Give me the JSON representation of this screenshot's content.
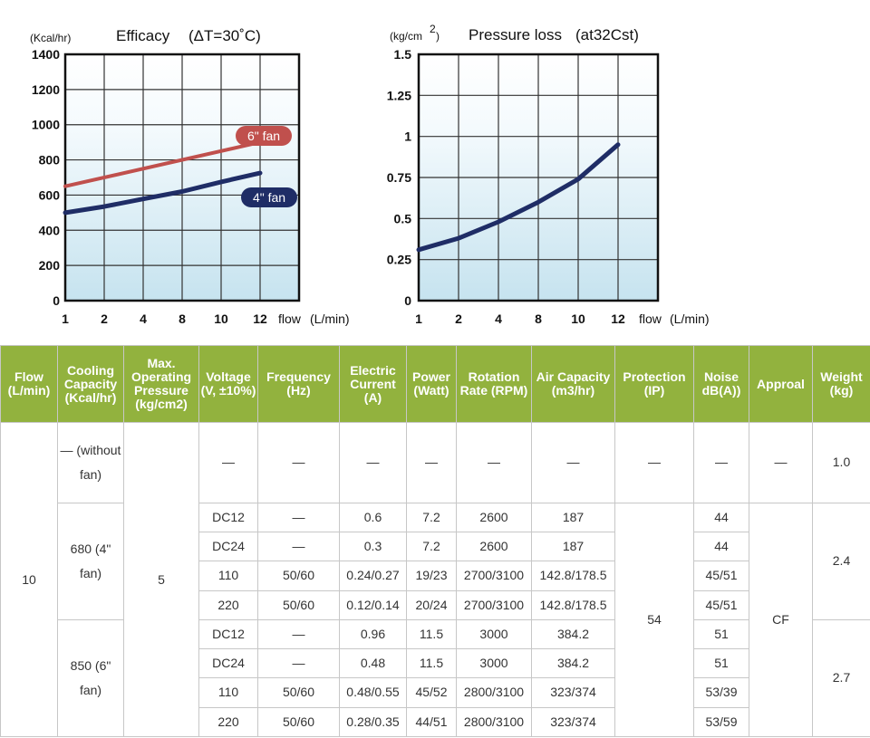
{
  "chart_data": [
    {
      "type": "line",
      "title": "Efficacy",
      "title_note": "(ΔT=30˚C)",
      "ylabel": "(Kcal/hr)",
      "xlabel": "flow",
      "xunit": "(L/min)",
      "x_ticks": [
        "1",
        "2",
        "4",
        "8",
        "10",
        "12"
      ],
      "y_ticks": [
        "0",
        "200",
        "400",
        "600",
        "800",
        "1000",
        "1200",
        "1400"
      ],
      "ylim": [
        0,
        1400
      ],
      "grid": true,
      "series": [
        {
          "name": "6\" fan",
          "color": "#c0504d",
          "x": [
            1,
            12
          ],
          "y": [
            650,
            900
          ]
        },
        {
          "name": "4\" fan",
          "color": "#1f2d66",
          "x": [
            1,
            2,
            4,
            8,
            10,
            12
          ],
          "y": [
            500,
            535,
            578,
            620,
            675,
            725
          ]
        }
      ]
    },
    {
      "type": "line",
      "title": "Pressure loss",
      "title_note": "(at32Cst)",
      "ylabel": "(kg/cm",
      "ylabel_sup": "2",
      "ylabel_close": ")",
      "xlabel": "flow",
      "xunit": "(L/min)",
      "x_ticks": [
        "1",
        "2",
        "4",
        "8",
        "10",
        "12"
      ],
      "y_ticks": [
        "0",
        "0.25",
        "0.5",
        "0.75",
        "1",
        "1.25",
        "1.5"
      ],
      "ylim": [
        0,
        1.5
      ],
      "grid": true,
      "series": [
        {
          "color": "#1f2d66",
          "x": [
            1,
            2,
            4,
            8,
            10,
            12
          ],
          "y": [
            0.31,
            0.38,
            0.48,
            0.6,
            0.74,
            0.95
          ]
        }
      ]
    }
  ],
  "table": {
    "headers": [
      "Flow (L/min)",
      "Cooling Capacity (Kcal/hr)",
      "Max. Operating Pressure (kg/cm2)",
      "Voltage (V, ±10%)",
      "Frequency (Hz)",
      "Electric Current (A)",
      "Power (Watt)",
      "Rotation Rate (RPM)",
      "Air Capacity (m3/hr)",
      "Protection (IP)",
      "Noise dB(A))",
      "Approal",
      "Weight (kg)"
    ],
    "flow": "10",
    "pressure": "5",
    "protection": "54",
    "approval": "CF",
    "first_row": {
      "capacity": "— (without fan)",
      "voltage": "—",
      "frequency": "—",
      "current": "—",
      "power": "—",
      "rpm": "—",
      "air": "—",
      "protection": "—",
      "noise": "—",
      "approval": "—",
      "weight": "1.0"
    },
    "groups": [
      {
        "capacity": "680 (4\" fan)",
        "weight": "2.4",
        "rows": [
          {
            "voltage": "DC12",
            "frequency": "—",
            "current": "0.6",
            "power": "7.2",
            "rpm": "2600",
            "air": "187",
            "noise": "44"
          },
          {
            "voltage": "DC24",
            "frequency": "—",
            "current": "0.3",
            "power": "7.2",
            "rpm": "2600",
            "air": "187",
            "noise": "44"
          },
          {
            "voltage": "110",
            "frequency": "50/60",
            "current": "0.24/0.27",
            "power": "19/23",
            "rpm": "2700/3100",
            "air": "142.8/178.5",
            "noise": "45/51"
          },
          {
            "voltage": "220",
            "frequency": "50/60",
            "current": "0.12/0.14",
            "power": "20/24",
            "rpm": "2700/3100",
            "air": "142.8/178.5",
            "noise": "45/51"
          }
        ]
      },
      {
        "capacity": "850 (6\" fan)",
        "weight": "2.7",
        "rows": [
          {
            "voltage": "DC12",
            "frequency": "—",
            "current": "0.96",
            "power": "11.5",
            "rpm": "3000",
            "air": "384.2",
            "noise": "51"
          },
          {
            "voltage": "DC24",
            "frequency": "—",
            "current": "0.48",
            "power": "11.5",
            "rpm": "3000",
            "air": "384.2",
            "noise": "51"
          },
          {
            "voltage": "110",
            "frequency": "50/60",
            "current": "0.48/0.55",
            "power": "45/52",
            "rpm": "2800/3100",
            "air": "323/374",
            "noise": "53/39"
          },
          {
            "voltage": "220",
            "frequency": "50/60",
            "current": "0.28/0.35",
            "power": "44/51",
            "rpm": "2800/3100",
            "air": "323/374",
            "noise": "53/59"
          }
        ]
      }
    ]
  }
}
